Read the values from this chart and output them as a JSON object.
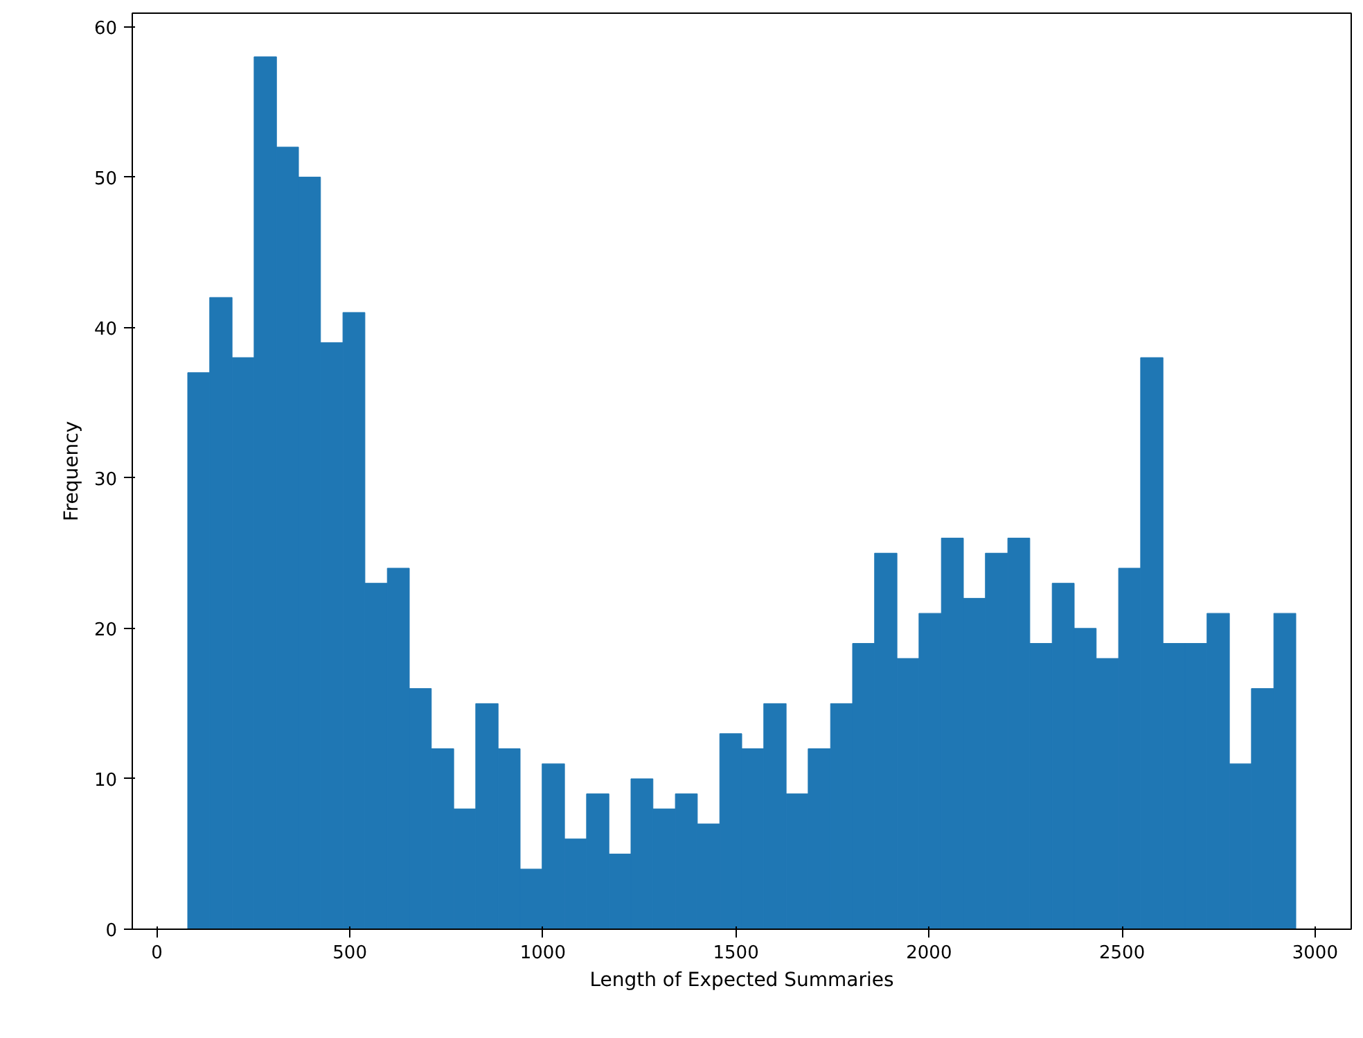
{
  "chart_data": {
    "type": "histogram",
    "xlabel": "Length of Expected Summaries",
    "ylabel": "Frequency",
    "color": "#1f77b4",
    "bins": [
      80,
      137,
      195,
      252,
      310,
      367,
      424,
      482,
      539,
      597,
      654,
      711,
      769,
      826,
      884,
      941,
      998,
      1056,
      1113,
      1171,
      1228,
      1285,
      1343,
      1400,
      1458,
      1515,
      1572,
      1630,
      1687,
      1745,
      1802,
      1859,
      1917,
      1974,
      2032,
      2089,
      2146,
      2204,
      2261,
      2319,
      2376,
      2433,
      2491,
      2548,
      2606,
      2663,
      2720,
      2778,
      2835,
      2893,
      2950
    ],
    "values": [
      37,
      42,
      38,
      58,
      52,
      50,
      39,
      41,
      23,
      24,
      16,
      12,
      8,
      15,
      12,
      4,
      11,
      6,
      9,
      5,
      10,
      8,
      9,
      7,
      13,
      12,
      15,
      9,
      12,
      15,
      19,
      25,
      18,
      21,
      26,
      22,
      25,
      26,
      19,
      23,
      20,
      18,
      24,
      38,
      19,
      19,
      21,
      11,
      16,
      21
    ],
    "xlim": [
      -63.5,
      3093.5
    ],
    "ylim": [
      0,
      60.9
    ],
    "xticks": [
      0,
      500,
      1000,
      1500,
      2000,
      2500,
      3000
    ],
    "yticks": [
      0,
      10,
      20,
      30,
      40,
      50,
      60
    ],
    "grid": false
  }
}
